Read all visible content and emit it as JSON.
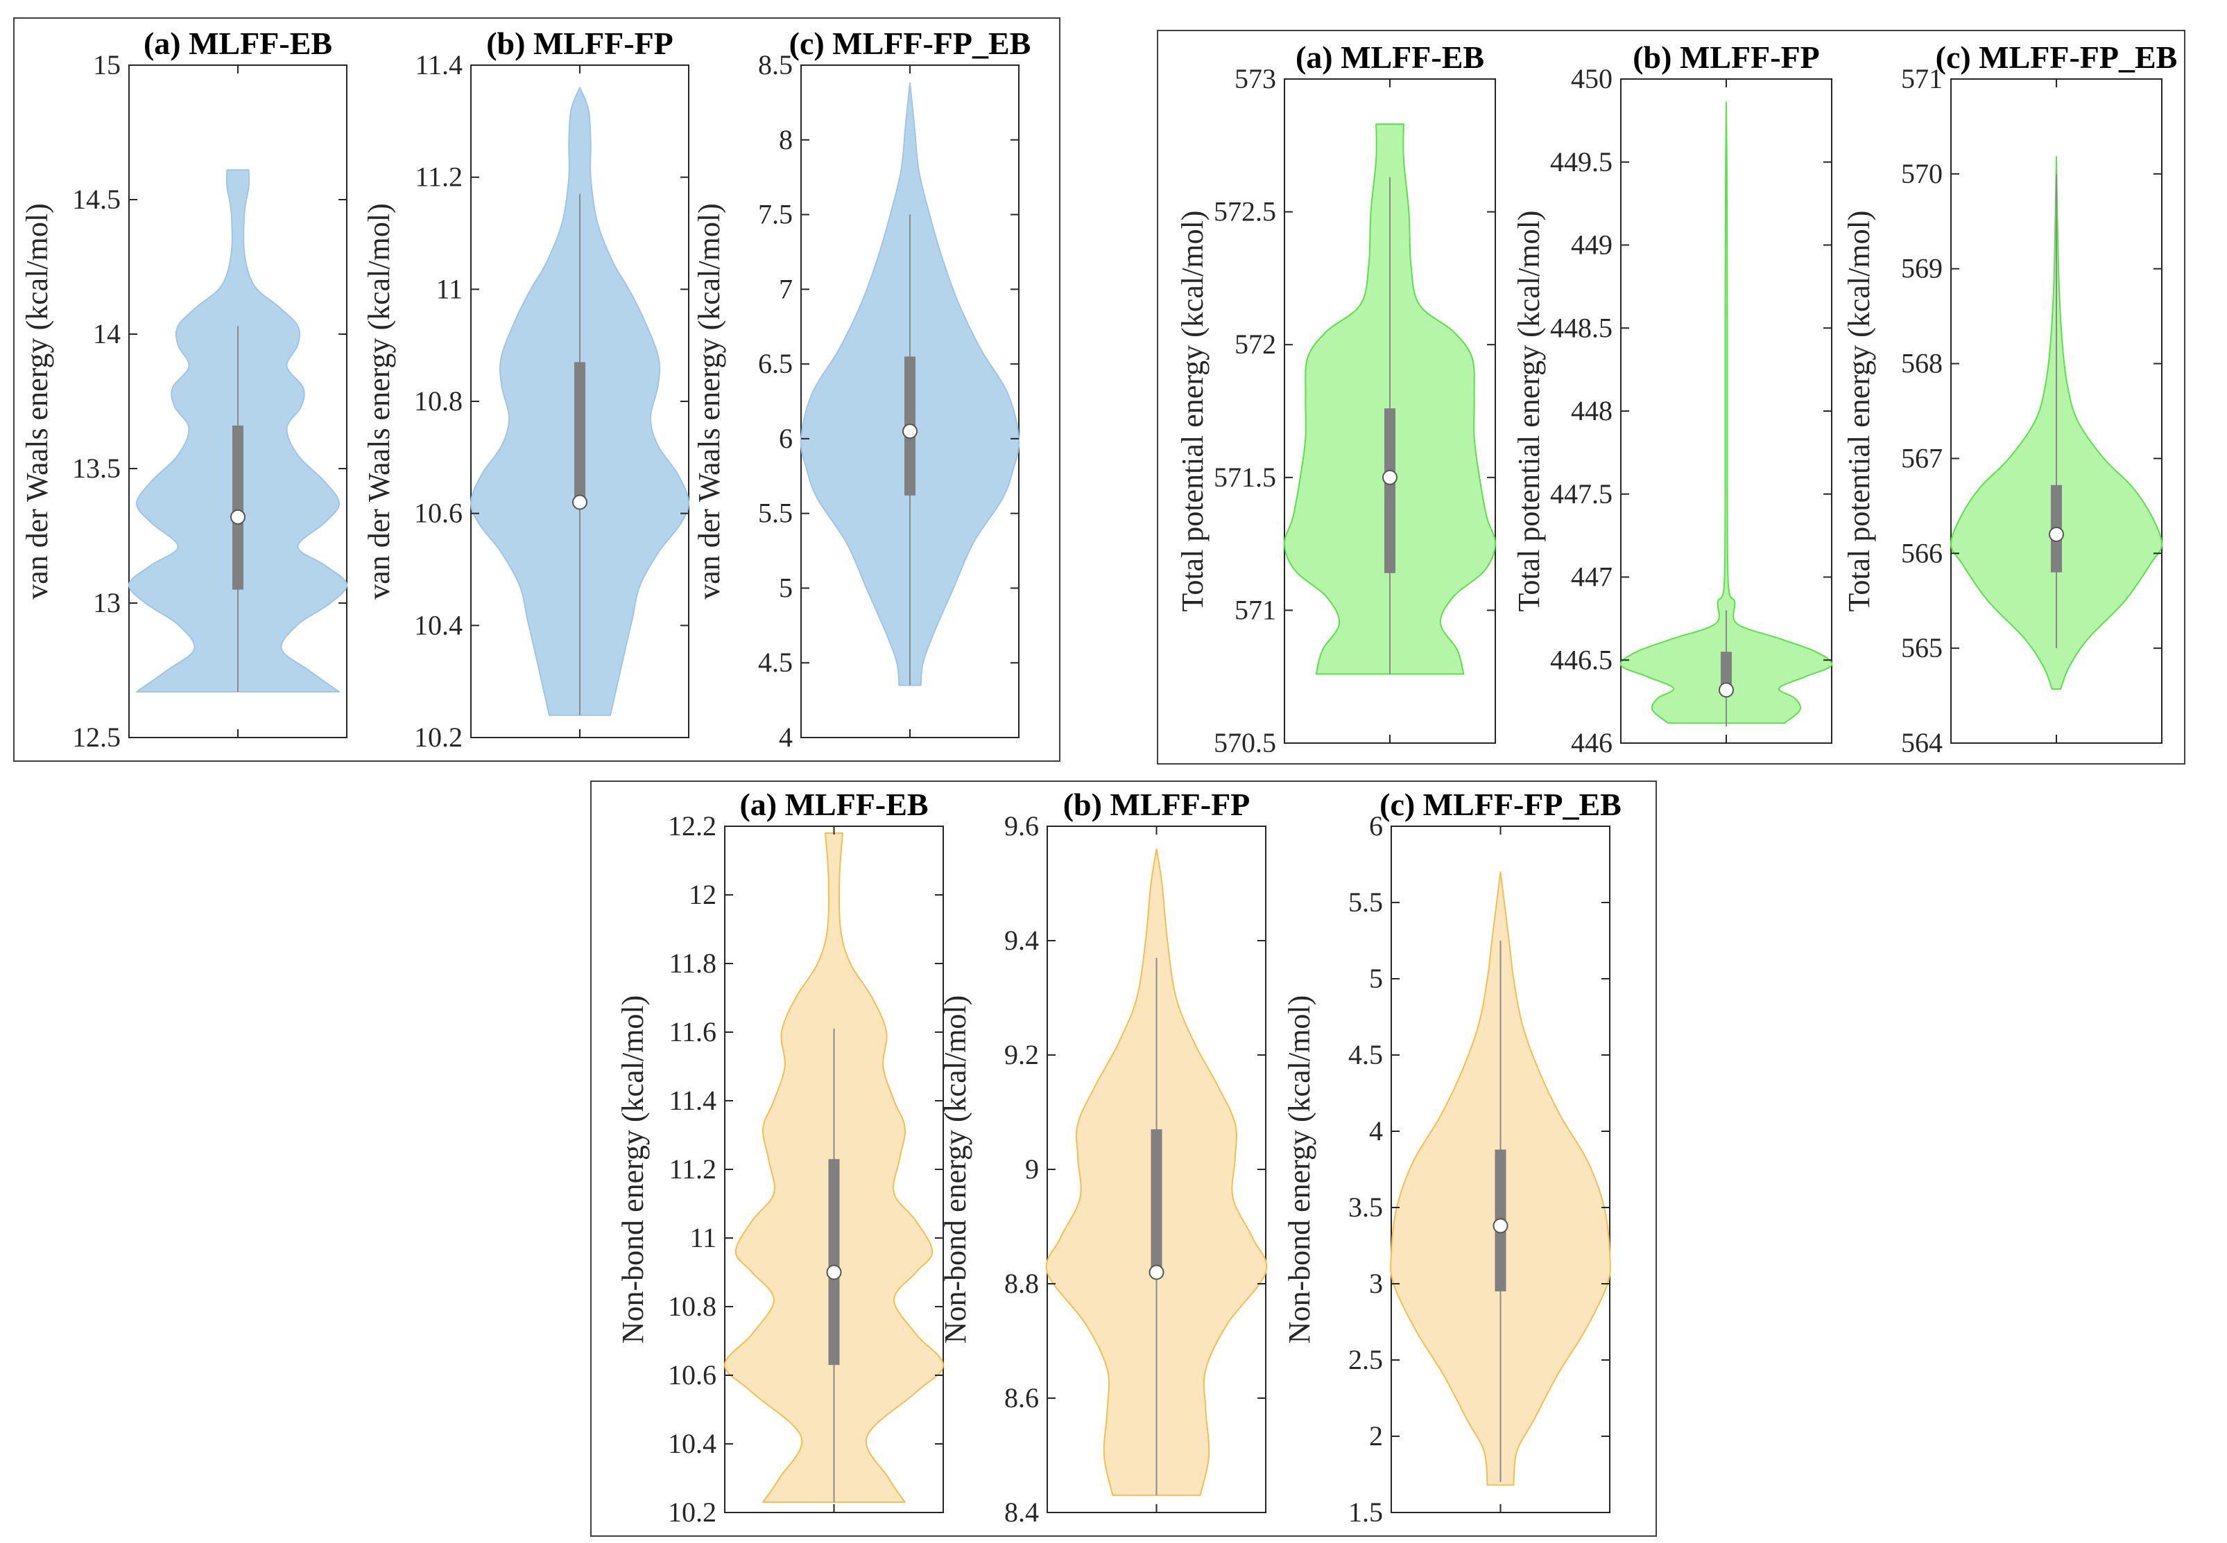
{
  "chart_data": [
    {
      "type": "violin",
      "group": "van-der-waals",
      "ylabel": "van der Waals energy (kcal/mol)",
      "color": "#b3d4ea",
      "edge_color": "#9fc5e8",
      "panels": [
        {
          "title": "(a) MLFF-EB",
          "ylim": [
            12.5,
            15
          ],
          "yticks": [
            "12.5",
            "13",
            "13.5",
            "14",
            "14.5",
            "15"
          ],
          "box": {
            "min": 12.67,
            "q1": 13.05,
            "median": 13.32,
            "q3": 13.66,
            "max": 14.03
          },
          "density": [
            [
              12.67,
              0.93
            ],
            [
              12.75,
              0.65
            ],
            [
              12.83,
              0.4
            ],
            [
              12.92,
              0.55
            ],
            [
              13.0,
              0.85
            ],
            [
              13.07,
              1.0
            ],
            [
              13.14,
              0.8
            ],
            [
              13.21,
              0.55
            ],
            [
              13.3,
              0.8
            ],
            [
              13.37,
              0.93
            ],
            [
              13.45,
              0.8
            ],
            [
              13.55,
              0.55
            ],
            [
              13.65,
              0.45
            ],
            [
              13.73,
              0.58
            ],
            [
              13.8,
              0.6
            ],
            [
              13.88,
              0.45
            ],
            [
              13.96,
              0.55
            ],
            [
              14.03,
              0.55
            ],
            [
              14.1,
              0.38
            ],
            [
              14.18,
              0.15
            ],
            [
              14.3,
              0.06
            ],
            [
              14.45,
              0.06
            ],
            [
              14.55,
              0.1
            ],
            [
              14.61,
              0.1
            ]
          ]
        },
        {
          "title": "(b) MLFF-FP",
          "ylim": [
            10.2,
            11.4
          ],
          "yticks": [
            "10.2",
            "10.4",
            "10.6",
            "10.8",
            "11",
            "11.2",
            "11.4"
          ],
          "box": {
            "min": 10.24,
            "q1": 10.62,
            "median": 10.62,
            "q3": 10.87,
            "max": 11.17
          },
          "density": [
            [
              10.24,
              0.28
            ],
            [
              10.3,
              0.35
            ],
            [
              10.36,
              0.42
            ],
            [
              10.41,
              0.48
            ],
            [
              10.47,
              0.55
            ],
            [
              10.53,
              0.72
            ],
            [
              10.58,
              0.92
            ],
            [
              10.62,
              1.0
            ],
            [
              10.67,
              0.9
            ],
            [
              10.72,
              0.72
            ],
            [
              10.77,
              0.65
            ],
            [
              10.83,
              0.72
            ],
            [
              10.88,
              0.72
            ],
            [
              10.95,
              0.58
            ],
            [
              11.0,
              0.45
            ],
            [
              11.05,
              0.3
            ],
            [
              11.12,
              0.16
            ],
            [
              11.2,
              0.1
            ],
            [
              11.26,
              0.1
            ],
            [
              11.32,
              0.08
            ],
            [
              11.36,
              0.0
            ]
          ]
        },
        {
          "title": "(c) MLFF-FP_EB",
          "ylim": [
            4,
            8.5
          ],
          "yticks": [
            "4",
            "4.5",
            "5",
            "5.5",
            "6",
            "6.5",
            "7",
            "7.5",
            "8",
            "8.5"
          ],
          "box": {
            "min": 4.35,
            "q1": 5.62,
            "median": 6.05,
            "q3": 6.55,
            "max": 7.5
          },
          "density": [
            [
              4.35,
              0.1
            ],
            [
              4.5,
              0.12
            ],
            [
              4.7,
              0.22
            ],
            [
              5.0,
              0.4
            ],
            [
              5.3,
              0.58
            ],
            [
              5.6,
              0.85
            ],
            [
              5.8,
              0.95
            ],
            [
              6.0,
              1.0
            ],
            [
              6.3,
              0.9
            ],
            [
              6.6,
              0.65
            ],
            [
              6.9,
              0.45
            ],
            [
              7.2,
              0.3
            ],
            [
              7.5,
              0.18
            ],
            [
              7.8,
              0.08
            ],
            [
              8.1,
              0.04
            ],
            [
              8.38,
              0.0
            ]
          ]
        }
      ]
    },
    {
      "type": "violin",
      "group": "total-potential",
      "ylabel": "Total potential energy (kcal/mol)",
      "color": "#b4f5a8",
      "edge_color": "#5ae24a",
      "panels": [
        {
          "title": "(a) MLFF-EB",
          "ylim": [
            570.5,
            573
          ],
          "yticks": [
            "570.5",
            "571",
            "571.5",
            "572",
            "572.5",
            "573"
          ],
          "box": {
            "min": 570.76,
            "q1": 571.14,
            "median": 571.5,
            "q3": 571.76,
            "max": 572.63
          },
          "density": [
            [
              570.76,
              0.7
            ],
            [
              570.85,
              0.64
            ],
            [
              570.95,
              0.48
            ],
            [
              571.05,
              0.6
            ],
            [
              571.15,
              0.9
            ],
            [
              571.25,
              1.0
            ],
            [
              571.35,
              0.92
            ],
            [
              571.5,
              0.85
            ],
            [
              571.65,
              0.8
            ],
            [
              571.8,
              0.8
            ],
            [
              571.95,
              0.78
            ],
            [
              572.05,
              0.6
            ],
            [
              572.15,
              0.28
            ],
            [
              572.3,
              0.2
            ],
            [
              572.5,
              0.18
            ],
            [
              572.7,
              0.13
            ],
            [
              572.83,
              0.13
            ]
          ]
        },
        {
          "title": "(b) MLFF-FP",
          "ylim": [
            446,
            450
          ],
          "yticks": [
            "446",
            "446.5",
            "447",
            "447.5",
            "448",
            "448.5",
            "449",
            "449.5",
            "450"
          ],
          "box": {
            "min": 446.1,
            "q1": 446.3,
            "median": 446.32,
            "q3": 446.55,
            "max": 446.8
          },
          "density": [
            [
              446.12,
              0.55
            ],
            [
              446.2,
              0.7
            ],
            [
              446.27,
              0.65
            ],
            [
              446.33,
              0.5
            ],
            [
              446.4,
              0.75
            ],
            [
              446.47,
              1.0
            ],
            [
              446.55,
              0.85
            ],
            [
              446.63,
              0.5
            ],
            [
              446.72,
              0.1
            ],
            [
              446.85,
              0.08
            ],
            [
              446.95,
              0.02
            ],
            [
              447.5,
              0.01
            ],
            [
              448.5,
              0.01
            ],
            [
              449.5,
              0.005
            ],
            [
              449.86,
              0.0
            ]
          ]
        },
        {
          "title": "(c) MLFF-FP_EB",
          "ylim": [
            564,
            571
          ],
          "yticks": [
            "564",
            "565",
            "566",
            "567",
            "568",
            "569",
            "570",
            "571"
          ],
          "box": {
            "min": 565.0,
            "q1": 565.8,
            "median": 566.2,
            "q3": 566.72,
            "max": 570.0
          },
          "density": [
            [
              564.57,
              0.04
            ],
            [
              564.8,
              0.12
            ],
            [
              565.1,
              0.3
            ],
            [
              565.5,
              0.65
            ],
            [
              565.9,
              0.9
            ],
            [
              566.1,
              1.0
            ],
            [
              566.4,
              0.9
            ],
            [
              566.7,
              0.72
            ],
            [
              567.0,
              0.45
            ],
            [
              567.4,
              0.2
            ],
            [
              567.8,
              0.1
            ],
            [
              568.3,
              0.05
            ],
            [
              569.0,
              0.02
            ],
            [
              570.18,
              0.0
            ]
          ]
        }
      ]
    },
    {
      "type": "violin",
      "group": "non-bond",
      "ylabel": "Non-bond energy (kcal/mol)",
      "color": "#fae5bd",
      "edge_color": "#f3c04f",
      "panels": [
        {
          "title": "(a) MLFF-EB",
          "ylim": [
            10.2,
            12.2
          ],
          "yticks": [
            "10.2",
            "10.4",
            "10.6",
            "10.8",
            "11",
            "11.2",
            "11.4",
            "11.6",
            "11.8",
            "12",
            "12.2"
          ],
          "box": {
            "min": 10.23,
            "q1": 10.63,
            "median": 10.9,
            "q3": 11.23,
            "max": 11.61
          },
          "density": [
            [
              10.23,
              0.65
            ],
            [
              10.3,
              0.5
            ],
            [
              10.42,
              0.3
            ],
            [
              10.55,
              0.75
            ],
            [
              10.63,
              1.0
            ],
            [
              10.72,
              0.75
            ],
            [
              10.82,
              0.55
            ],
            [
              10.9,
              0.75
            ],
            [
              10.96,
              0.9
            ],
            [
              11.05,
              0.75
            ],
            [
              11.13,
              0.55
            ],
            [
              11.23,
              0.6
            ],
            [
              11.32,
              0.65
            ],
            [
              11.4,
              0.55
            ],
            [
              11.5,
              0.45
            ],
            [
              11.6,
              0.48
            ],
            [
              11.7,
              0.35
            ],
            [
              11.8,
              0.15
            ],
            [
              11.9,
              0.06
            ],
            [
              12.05,
              0.05
            ],
            [
              12.18,
              0.08
            ]
          ]
        },
        {
          "title": "(b) MLFF-FP",
          "ylim": [
            8.4,
            9.6
          ],
          "yticks": [
            "8.4",
            "8.6",
            "8.8",
            "9",
            "9.2",
            "9.4",
            "9.6"
          ],
          "box": {
            "min": 8.43,
            "q1": 8.82,
            "median": 8.82,
            "q3": 9.07,
            "max": 9.37
          },
          "density": [
            [
              8.43,
              0.4
            ],
            [
              8.5,
              0.48
            ],
            [
              8.58,
              0.45
            ],
            [
              8.65,
              0.45
            ],
            [
              8.73,
              0.65
            ],
            [
              8.82,
              1.0
            ],
            [
              8.88,
              0.88
            ],
            [
              8.95,
              0.7
            ],
            [
              9.02,
              0.72
            ],
            [
              9.08,
              0.72
            ],
            [
              9.15,
              0.55
            ],
            [
              9.22,
              0.35
            ],
            [
              9.3,
              0.18
            ],
            [
              9.4,
              0.1
            ],
            [
              9.5,
              0.05
            ],
            [
              9.56,
              0.0
            ]
          ]
        },
        {
          "title": "(c) MLFF-FP_EB",
          "ylim": [
            1.5,
            6
          ],
          "yticks": [
            "1.5",
            "2",
            "2.5",
            "3",
            "3.5",
            "4",
            "4.5",
            "5",
            "5.5",
            "6"
          ],
          "box": {
            "min": 1.7,
            "q1": 2.95,
            "median": 3.38,
            "q3": 3.88,
            "max": 5.25
          },
          "density": [
            [
              1.68,
              0.12
            ],
            [
              1.9,
              0.15
            ],
            [
              2.1,
              0.3
            ],
            [
              2.4,
              0.52
            ],
            [
              2.7,
              0.78
            ],
            [
              3.0,
              0.98
            ],
            [
              3.2,
              1.0
            ],
            [
              3.5,
              0.95
            ],
            [
              3.8,
              0.8
            ],
            [
              4.1,
              0.55
            ],
            [
              4.4,
              0.35
            ],
            [
              4.7,
              0.2
            ],
            [
              5.0,
              0.12
            ],
            [
              5.3,
              0.07
            ],
            [
              5.7,
              0.0
            ]
          ]
        }
      ]
    }
  ]
}
